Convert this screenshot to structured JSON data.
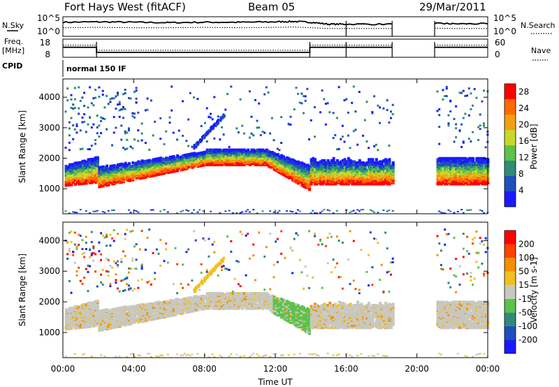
{
  "header": {
    "station": "Fort Hays West (fitACF)",
    "beam": "Beam 05",
    "date": "29/Mar/2011"
  },
  "strips": {
    "nsky_label": "N.Sky",
    "nsearch_label": "N.Search",
    "freq_label": "Freq.",
    "freq_unit": "[MHz]",
    "nave_label": "Nave",
    "cpid_label": "CPID",
    "cpid_value": "normal 150 IF",
    "noise_ticks": [
      "10^5",
      "10^0"
    ],
    "noise_ticks_right": [
      "10^5",
      "10^0"
    ],
    "freq_ticks": [
      "18",
      "8"
    ],
    "nave_ticks": [
      "60",
      "0"
    ]
  },
  "chart_data": [
    {
      "type": "line",
      "name": "noise",
      "x": [
        0,
        2,
        4,
        6,
        8,
        10,
        12,
        13,
        14,
        15,
        16,
        18.6,
        21,
        22,
        24
      ],
      "series": [
        {
          "name": "N.Sky",
          "values": [
            3.6,
            3.7,
            3.6,
            3.5,
            3.6,
            3.6,
            3.7,
            3.8,
            3.6,
            3.1,
            3.1,
            3.1,
            3.3,
            3.2,
            3.2
          ]
        },
        {
          "name": "N.Search",
          "values": [
            2.2,
            2.3,
            2.2,
            2.2,
            2.3,
            2.2,
            2.3,
            2.4,
            2.2,
            2.0,
            2.0,
            2.0,
            2.1,
            2.0,
            2.0
          ]
        }
      ],
      "gaps": [
        [
          18.6,
          21.0
        ]
      ],
      "xlim": [
        0,
        24
      ],
      "ylim": [
        0,
        5
      ]
    },
    {
      "type": "line",
      "name": "frequency-nave",
      "freq_segments": [
        {
          "x": [
            0,
            1.9
          ],
          "value": 13.5
        },
        {
          "x": [
            1.9,
            13.95
          ],
          "value": 10.7
        },
        {
          "x": [
            13.95,
            18.6
          ],
          "value": 13.5
        },
        {
          "x": [
            21.0,
            24
          ],
          "value": 13.5
        }
      ],
      "nave_value": 55,
      "gaps": [
        [
          18.6,
          21.0
        ]
      ],
      "freq_ylim": [
        8,
        18
      ],
      "nave_ylim": [
        0,
        60
      ],
      "xlim": [
        0,
        24
      ]
    },
    {
      "type": "heatmap",
      "name": "power",
      "ylabel": "Slant Range [km]",
      "colorbar_label": "Power [dB]",
      "colorbar_ticks": [
        4,
        8,
        12,
        16,
        20,
        24,
        28
      ],
      "colorbar_range": [
        0,
        30
      ],
      "colors": [
        "#1a1aff",
        "#1e4fbf",
        "#2e8b77",
        "#5cc24a",
        "#c8d82a",
        "#f2a012",
        "#ff6a00",
        "#ff0000"
      ],
      "xlim": [
        0,
        24
      ],
      "ylim": [
        180,
        4600
      ],
      "yticks": [
        1000,
        2000,
        3000,
        4000
      ],
      "gaps": [
        [
          18.6,
          21.0
        ]
      ]
    },
    {
      "type": "heatmap",
      "name": "velocity",
      "ylabel": "Slant Range [km]",
      "colorbar_label": "Velocity [m s-1]",
      "colorbar_ticks": [
        200,
        100,
        50,
        15,
        -15,
        -50,
        -100,
        -200
      ],
      "colors": [
        "#1a1aff",
        "#1e4fbf",
        "#2e8b77",
        "#5cc24a",
        "#c8c8c0",
        "#f0c020",
        "#f29000",
        "#ff4000",
        "#ff0000"
      ],
      "xlim": [
        0,
        24
      ],
      "ylim": [
        180,
        4600
      ],
      "yticks": [
        1000,
        2000,
        3000,
        4000
      ],
      "xticks": [
        "00:00",
        "04:00",
        "08:00",
        "12:00",
        "16:00",
        "20:00",
        "00:00"
      ],
      "xlabel": "Time UT",
      "gaps": [
        [
          18.6,
          21.0
        ]
      ]
    }
  ]
}
